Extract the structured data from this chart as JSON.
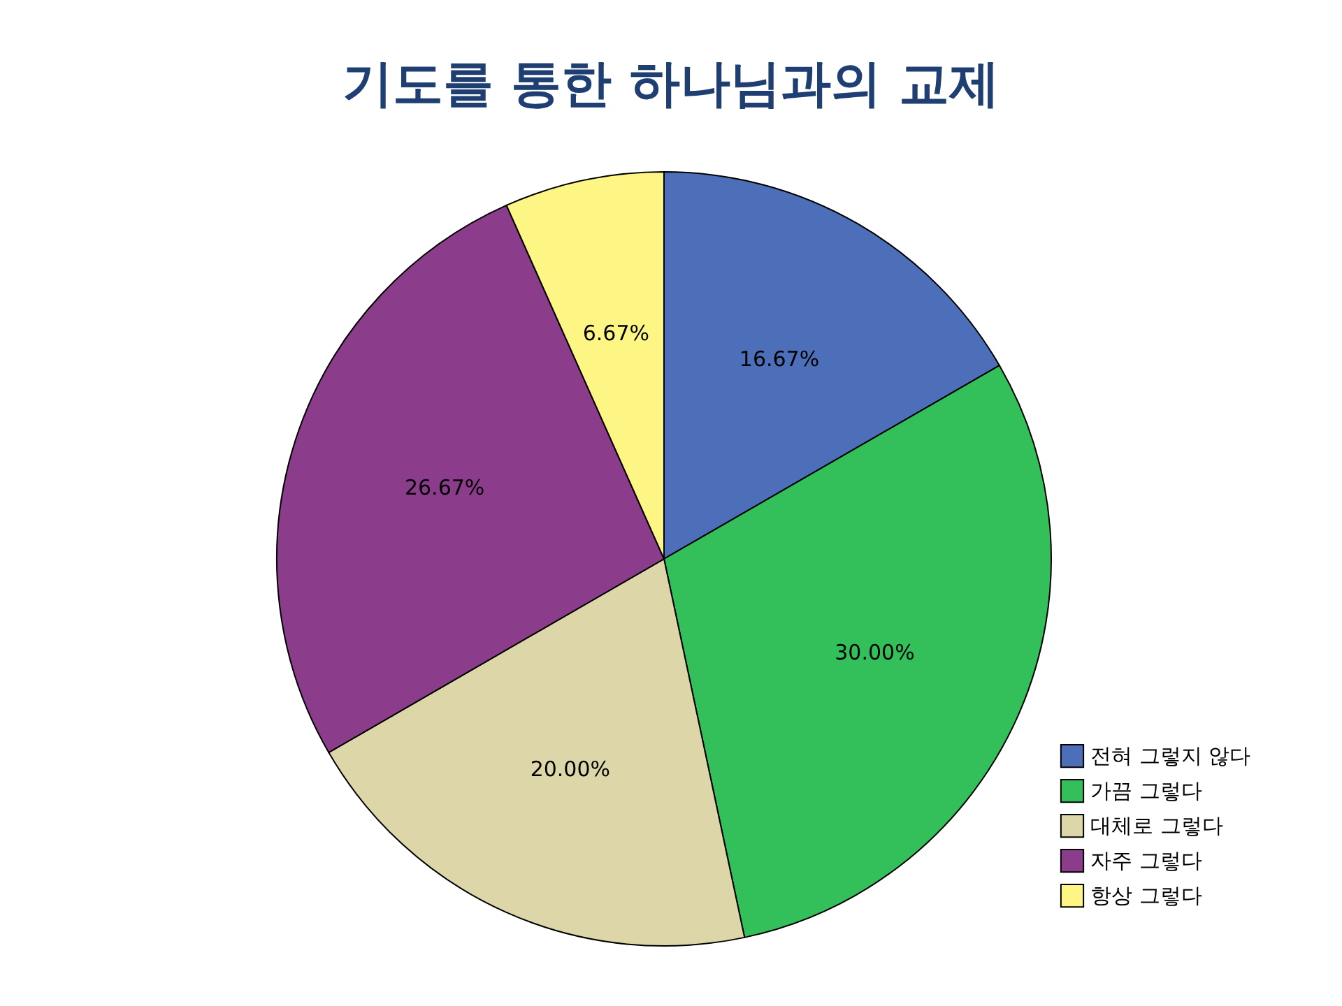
{
  "chart_data": {
    "type": "pie",
    "title": "기도를 통한 하나님과의 교제",
    "categories": [
      "전혀 그렇지 않다",
      "가끔 그렇다",
      "대체로 그렇다",
      "자주 그렇다",
      "항상 그렇다"
    ],
    "values": [
      16.67,
      30.0,
      20.0,
      26.67,
      6.67
    ],
    "value_labels": [
      "16.67%",
      "30.00%",
      "20.00%",
      "26.67%",
      "6.67%"
    ],
    "colors": [
      "#4d6fba",
      "#33c05a",
      "#dcd6a8",
      "#8b3d8b",
      "#fdf685"
    ],
    "legend": "bottom right"
  }
}
